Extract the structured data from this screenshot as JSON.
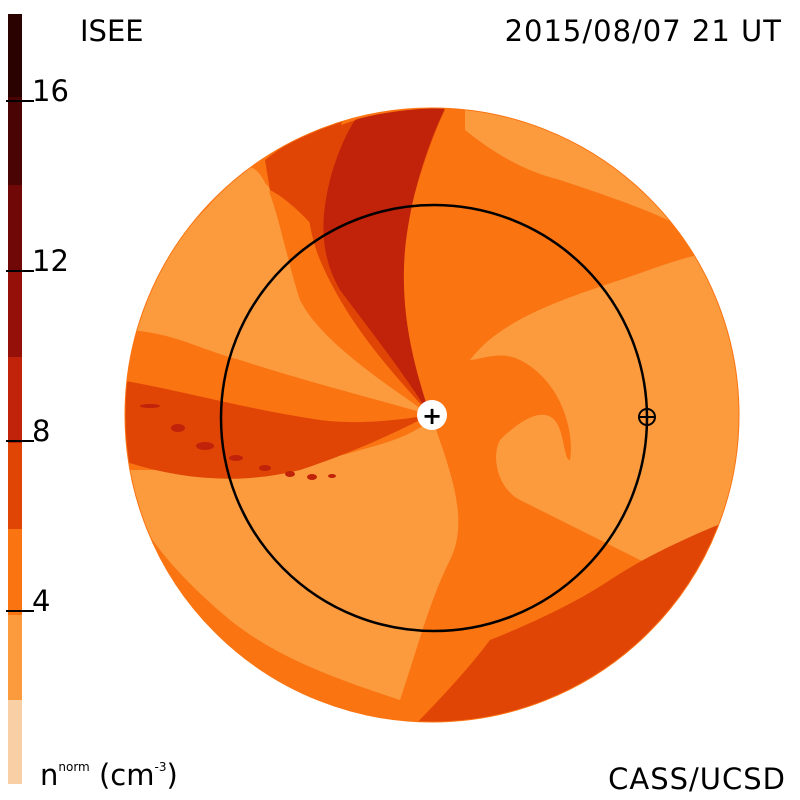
{
  "header": {
    "org": "ISEE",
    "timestamp": "2015/08/07 21 UT"
  },
  "footer": {
    "credit": "CASS/UCSD"
  },
  "colorbar": {
    "unit_base": "n",
    "unit_super": "norm",
    "unit_suffix": "(cm",
    "unit_exp": "-3",
    "unit_close": ")",
    "ticks": [
      "16",
      "12",
      "8",
      "4"
    ],
    "bands": [
      "#f9cfa6",
      "#fb9b3e",
      "#fa7412",
      "#e04506",
      "#c0220a",
      "#941008",
      "#700808",
      "#4a0404",
      "#2a0200"
    ]
  },
  "markers": {
    "sun_symbol": "+",
    "earth_symbol": "⊕"
  },
  "colors": {
    "c1": "#fb9b3e",
    "c2": "#fa7412",
    "c3": "#e04506",
    "c4": "#c0220a"
  }
}
